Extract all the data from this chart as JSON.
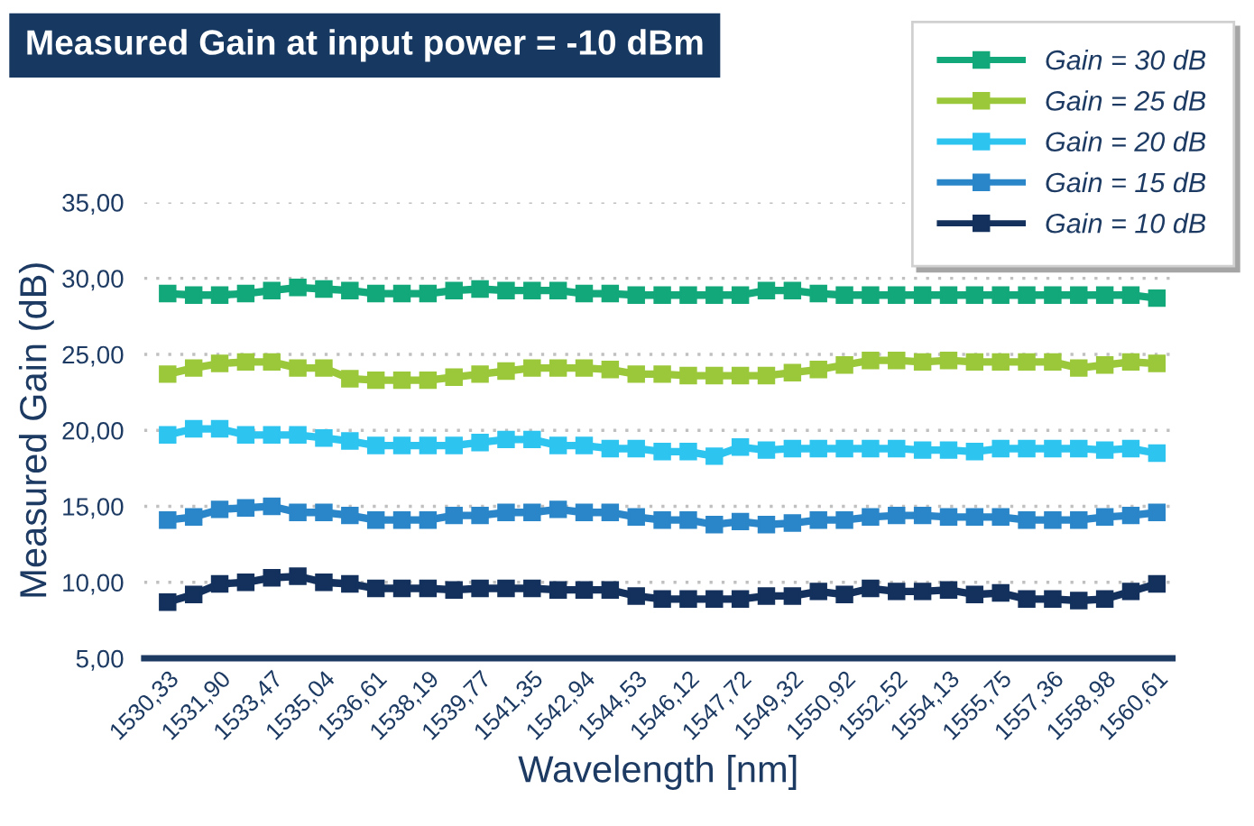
{
  "chart_data": {
    "type": "line",
    "title": "Measured Gain at input power = -10 dBm",
    "xlabel": "Wavelength [nm]",
    "ylabel": "Measured Gain (dB)",
    "categories": [
      "1530,33",
      null,
      "1531,90",
      null,
      "1533,47",
      null,
      "1535,04",
      null,
      "1536,61",
      null,
      "1538,19",
      null,
      "1539,77",
      null,
      "1541,35",
      null,
      "1542,94",
      null,
      "1544,53",
      null,
      "1546,12",
      null,
      "1547,72",
      null,
      "1549,32",
      null,
      "1550,92",
      null,
      "1552,52",
      null,
      "1554,13",
      null,
      "1555,75",
      null,
      "1557,36",
      null,
      "1558,98",
      null,
      "1560,61"
    ],
    "series": [
      {
        "name": "Gain = 30 dB",
        "color": "#12a87a",
        "values": [
          29.0,
          28.9,
          28.9,
          29.0,
          29.2,
          29.4,
          29.3,
          29.2,
          29.0,
          29.0,
          29.0,
          29.2,
          29.3,
          29.2,
          29.2,
          29.2,
          29.0,
          29.0,
          28.9,
          28.9,
          28.9,
          28.9,
          28.9,
          29.2,
          29.2,
          29.0,
          28.9,
          28.9,
          28.9,
          28.9,
          28.9,
          28.9,
          28.9,
          28.9,
          28.9,
          28.9,
          28.9,
          28.9,
          28.7
        ]
      },
      {
        "name": "Gain = 25 dB",
        "color": "#9bc83a",
        "values": [
          23.7,
          24.1,
          24.4,
          24.5,
          24.5,
          24.1,
          24.1,
          23.4,
          23.3,
          23.3,
          23.3,
          23.5,
          23.7,
          23.9,
          24.1,
          24.1,
          24.1,
          24.0,
          23.7,
          23.7,
          23.6,
          23.6,
          23.6,
          23.6,
          23.8,
          24.0,
          24.3,
          24.6,
          24.6,
          24.5,
          24.6,
          24.5,
          24.5,
          24.5,
          24.5,
          24.1,
          24.3,
          24.5,
          24.4
        ]
      },
      {
        "name": "Gain = 20 dB",
        "color": "#2ec4f0",
        "values": [
          19.7,
          20.1,
          20.1,
          19.7,
          19.7,
          19.7,
          19.5,
          19.3,
          19.0,
          19.0,
          19.0,
          19.0,
          19.2,
          19.4,
          19.4,
          19.0,
          19.0,
          18.8,
          18.8,
          18.6,
          18.6,
          18.3,
          18.9,
          18.7,
          18.8,
          18.8,
          18.8,
          18.8,
          18.8,
          18.7,
          18.7,
          18.6,
          18.8,
          18.8,
          18.8,
          18.8,
          18.7,
          18.8,
          18.5
        ]
      },
      {
        "name": "Gain = 15 dB",
        "color": "#2a86c8",
        "values": [
          14.1,
          14.3,
          14.8,
          14.9,
          15.0,
          14.6,
          14.6,
          14.4,
          14.1,
          14.1,
          14.1,
          14.4,
          14.4,
          14.6,
          14.6,
          14.8,
          14.6,
          14.6,
          14.3,
          14.1,
          14.1,
          13.8,
          14.0,
          13.8,
          13.9,
          14.1,
          14.1,
          14.3,
          14.4,
          14.4,
          14.3,
          14.3,
          14.3,
          14.1,
          14.1,
          14.1,
          14.3,
          14.4,
          14.6
        ]
      },
      {
        "name": "Gain = 10 dB",
        "color": "#13315c",
        "values": [
          8.7,
          9.2,
          9.9,
          10.0,
          10.3,
          10.4,
          10.0,
          9.9,
          9.6,
          9.6,
          9.6,
          9.5,
          9.6,
          9.6,
          9.6,
          9.5,
          9.5,
          9.5,
          9.1,
          8.9,
          8.9,
          8.9,
          8.9,
          9.1,
          9.1,
          9.4,
          9.2,
          9.6,
          9.4,
          9.4,
          9.5,
          9.2,
          9.3,
          8.9,
          8.9,
          8.8,
          8.9,
          9.4,
          9.9
        ]
      }
    ],
    "ylim": [
      5,
      35
    ],
    "yticks": [
      {
        "value": 5,
        "label": "5,00"
      },
      {
        "value": 10,
        "label": "10,00"
      },
      {
        "value": 15,
        "label": "15,00"
      },
      {
        "value": 20,
        "label": "20,00"
      },
      {
        "value": 25,
        "label": "25,00"
      },
      {
        "value": 30,
        "label": "30,00"
      },
      {
        "value": 35,
        "label": "35,00"
      }
    ],
    "grid": "y",
    "legend": "top right",
    "marker": "square",
    "line_style": "solid"
  }
}
